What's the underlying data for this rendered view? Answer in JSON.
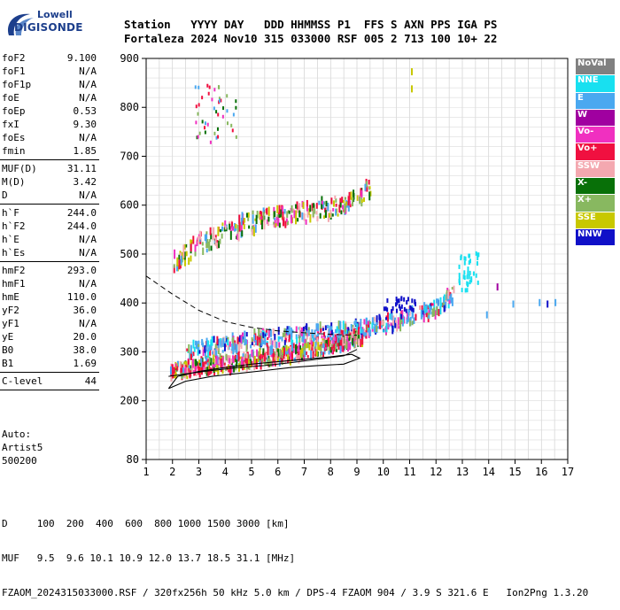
{
  "logo": {
    "line1": "Lowell",
    "line2": "DIGISONDE"
  },
  "header": {
    "row1": "Station   YYYY DAY   DDD HHMMSS P1  FFS S AXN PPS IGA PS",
    "row2": "Fortaleza 2024 Nov10 315 033000 RSF 005 2 713 100 10+ 22"
  },
  "params": {
    "group1": [
      {
        "name": "foF2",
        "value": "9.100"
      },
      {
        "name": "foF1",
        "value": "N/A"
      },
      {
        "name": "foF1p",
        "value": "N/A"
      },
      {
        "name": "foE",
        "value": "N/A"
      },
      {
        "name": "foEp",
        "value": "0.53"
      },
      {
        "name": "fxI",
        "value": "9.30"
      },
      {
        "name": "foEs",
        "value": "N/A"
      },
      {
        "name": "fmin",
        "value": "1.85"
      }
    ],
    "group2": [
      {
        "name": "MUF(D)",
        "value": "31.11"
      },
      {
        "name": "M(D)",
        "value": "3.42"
      },
      {
        "name": "D",
        "value": "N/A"
      }
    ],
    "group3": [
      {
        "name": "h`F",
        "value": "244.0"
      },
      {
        "name": "h`F2",
        "value": "244.0"
      },
      {
        "name": "h`E",
        "value": "N/A"
      },
      {
        "name": "h`Es",
        "value": "N/A"
      }
    ],
    "group4": [
      {
        "name": "hmF2",
        "value": "293.0"
      },
      {
        "name": "hmF1",
        "value": "N/A"
      },
      {
        "name": "hmE",
        "value": "110.0"
      },
      {
        "name": "yF2",
        "value": "36.0"
      },
      {
        "name": "yF1",
        "value": "N/A"
      },
      {
        "name": "yE",
        "value": "20.0"
      },
      {
        "name": "B0",
        "value": "38.0"
      },
      {
        "name": "B1",
        "value": "1.69"
      }
    ],
    "group5": [
      {
        "name": "C-level",
        "value": "44"
      }
    ]
  },
  "auto": {
    "line1": "Auto:",
    "line2": "Artist5",
    "line3": "500200"
  },
  "legend": [
    {
      "label": "NoVal",
      "color": "#808080"
    },
    {
      "label": "NNE",
      "color": "#18e0f0"
    },
    {
      "label": "E",
      "color": "#4aa8f0"
    },
    {
      "label": "W",
      "color": "#a000a0"
    },
    {
      "label": "Vo-",
      "color": "#f030c0"
    },
    {
      "label": "Vo+",
      "color": "#f01040"
    },
    {
      "label": "SSW",
      "color": "#f4a8b0"
    },
    {
      "label": "X-",
      "color": "#087008"
    },
    {
      "label": "X+",
      "color": "#88b860"
    },
    {
      "label": "SSE",
      "color": "#c8c800"
    },
    {
      "label": "NNW",
      "color": "#1010c8"
    }
  ],
  "footer": {
    "line1": "D     100  200  400  600  800 1000 1500 3000 [km]",
    "line2": "MUF   9.5  9.6 10.1 10.9 12.0 13.7 18.5 31.1 [MHz]",
    "line3": "FZAOM_2024315033000.RSF / 320fx256h 50 kHz 5.0 km / DPS-4 FZAOM 904 / 3.9 S 321.6 E   Ion2Png 1.3.20"
  },
  "chart_data": {
    "type": "scatter",
    "xlim": [
      1,
      17
    ],
    "ylim": [
      80,
      900
    ],
    "xticks": [
      1,
      2,
      3,
      4,
      5,
      6,
      7,
      8,
      9,
      10,
      11,
      12,
      13,
      14,
      15,
      16,
      17
    ],
    "yticks": [
      80,
      200,
      300,
      400,
      500,
      600,
      700,
      800,
      900
    ],
    "grid": true,
    "legend_position": "right",
    "traces": [
      {
        "name": "O-trace lower edge",
        "x": [
          1.85,
          2.5,
          3.5,
          4.5,
          5.5,
          6.5,
          7.5,
          8.5,
          9.0
        ],
        "y": [
          250,
          255,
          262,
          268,
          272,
          278,
          285,
          292,
          305
        ]
      },
      {
        "name": "F2 O-echoes",
        "x": [
          2.0,
          3.0,
          4.0,
          5.0,
          6.0,
          7.0,
          8.0,
          9.0
        ],
        "y": [
          262,
          268,
          275,
          283,
          292,
          302,
          312,
          330
        ]
      },
      {
        "name": "F2 X-echoes",
        "x": [
          3.0,
          4.0,
          5.0,
          6.0,
          7.0,
          8.0,
          9.0,
          10.0,
          11.0,
          12.0,
          12.7
        ],
        "y": [
          305,
          315,
          325,
          330,
          335,
          340,
          345,
          358,
          370,
          390,
          420
        ]
      },
      {
        "name": "multi-hop",
        "x": [
          2.0,
          3.0,
          4.0,
          5.0,
          6.0,
          7.0,
          8.0,
          9.0,
          9.5
        ],
        "y": [
          485,
          520,
          545,
          565,
          575,
          585,
          595,
          610,
          640
        ]
      }
    ],
    "profile_curve": {
      "x": [
        1.85,
        2.5,
        3.5,
        4.5,
        5.5,
        6.5,
        7.5,
        8.5,
        9.1,
        8.8,
        8.0,
        7.0,
        6.0,
        5.0,
        4.0,
        3.0,
        2.2,
        1.85
      ],
      "y": [
        225,
        240,
        250,
        256,
        262,
        268,
        272,
        275,
        287,
        295,
        290,
        285,
        280,
        275,
        268,
        260,
        250,
        225
      ]
    },
    "dashed_curve": {
      "x": [
        1.0,
        2.0,
        3.0,
        4.0,
        5.0,
        6.0,
        7.0,
        8.0,
        9.0
      ],
      "y": [
        455,
        418,
        385,
        362,
        350,
        343,
        339,
        336,
        334
      ]
    }
  }
}
